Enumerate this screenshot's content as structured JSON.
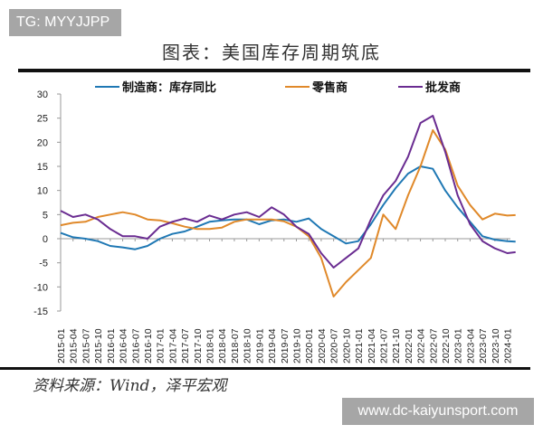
{
  "watermark_top": "TG: MYYJJPP",
  "watermark_bottom": "www.dc-kaiyunsport.com",
  "source": "资料来源：Wind，泽平宏观",
  "chart_data": {
    "type": "line",
    "title": "图表：美国库存周期筑底",
    "xlabel": "",
    "ylabel": "",
    "ylim": [
      -15,
      30
    ],
    "yticks": [
      -15,
      -10,
      -5,
      0,
      5,
      10,
      15,
      20,
      25,
      30
    ],
    "legend": "top",
    "grid": false,
    "x": [
      "2015-01",
      "2015-04",
      "2015-07",
      "2015-10",
      "2016-01",
      "2016-04",
      "2016-07",
      "2016-10",
      "2017-01",
      "2017-04",
      "2017-07",
      "2017-10",
      "2018-01",
      "2018-04",
      "2018-07",
      "2018-10",
      "2019-01",
      "2019-04",
      "2019-07",
      "2019-10",
      "2020-01",
      "2020-04",
      "2020-07",
      "2020-10",
      "2021-01",
      "2021-04",
      "2021-07",
      "2021-10",
      "2022-01",
      "2022-04",
      "2022-07",
      "2022-10",
      "2023-01",
      "2023-04",
      "2023-07",
      "2023-10",
      "2024-01",
      "2024-03"
    ],
    "xtick_labels": [
      "2015-01",
      "2015-04",
      "2015-07",
      "2015-10",
      "2016-01",
      "2016-04",
      "2016-07",
      "2016-10",
      "2017-01",
      "2017-04",
      "2017-07",
      "2017-10",
      "2018-01",
      "2018-04",
      "2018-07",
      "2018-10",
      "2019-01",
      "2019-04",
      "2019-07",
      "2019-10",
      "2020-01",
      "2020-04",
      "2020-07",
      "2020-10",
      "2021-01",
      "2021-04",
      "2021-07",
      "2021-10",
      "2022-01",
      "2022-04",
      "2022-07",
      "2022-10",
      "2023-01",
      "2023-04",
      "2023-07",
      "2023-10",
      "2024-01"
    ],
    "series": [
      {
        "name": "制造商：库存同比",
        "color": "#1f78b4",
        "values": [
          1.2,
          0.3,
          0,
          -0.5,
          -1.5,
          -1.8,
          -2.2,
          -1.5,
          0,
          1,
          1.5,
          2.5,
          3.5,
          3.8,
          4,
          4,
          3,
          3.8,
          4,
          3.5,
          4.2,
          2,
          0.5,
          -1,
          -0.5,
          3,
          7,
          10.5,
          13.5,
          15,
          14.5,
          10,
          6.5,
          3.5,
          0.5,
          -0.2,
          -0.5,
          -0.6
        ]
      },
      {
        "name": "零售商",
        "color": "#e0892a",
        "values": [
          2.8,
          3.3,
          3.5,
          4.5,
          5,
          5.5,
          5,
          4,
          3.8,
          3.2,
          2.5,
          2,
          2,
          2.3,
          3.5,
          4,
          4,
          4,
          3.6,
          2.5,
          0.5,
          -4,
          -12,
          -9,
          -6.5,
          -4,
          5,
          2,
          9,
          15,
          22.5,
          18.5,
          11,
          7,
          4,
          5.2,
          4.8,
          4.9
        ]
      },
      {
        "name": "批发商",
        "color": "#6a2c91",
        "values": [
          5.8,
          4.5,
          5,
          4,
          2,
          0.5,
          0.5,
          0,
          2.5,
          3.5,
          4.2,
          3.5,
          4.8,
          4,
          5,
          5.5,
          4.5,
          6.5,
          5,
          2.5,
          1,
          -3,
          -6,
          -4,
          -2,
          4,
          9,
          12,
          17,
          24,
          25.5,
          18,
          9,
          3,
          -0.5,
          -2,
          -3,
          -2.8
        ]
      }
    ]
  }
}
